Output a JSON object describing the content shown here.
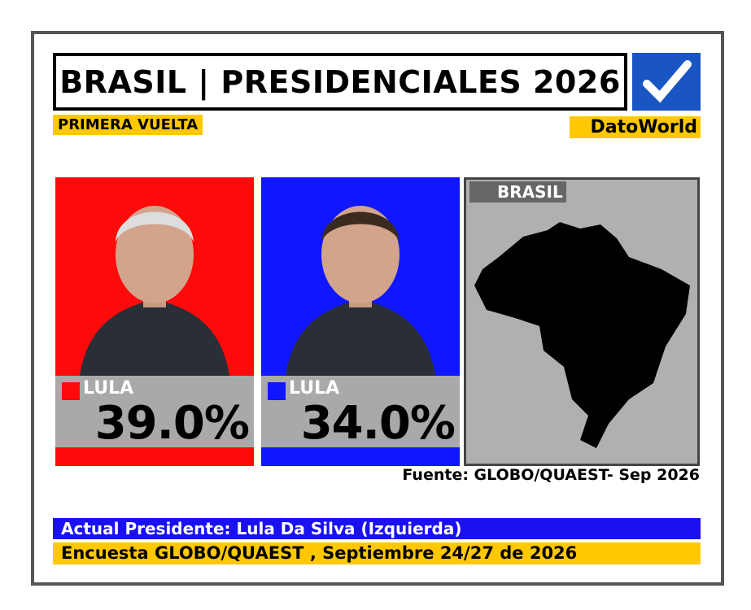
{
  "header": {
    "title": "BRASIL | PRESIDENCIALES 2026",
    "round": "PRIMERA VUELTA",
    "brand": "DatoWorld"
  },
  "candidates": [
    {
      "name": "LULA",
      "percent": "39.0%",
      "color": "#ff0a0a"
    },
    {
      "name": "LULA",
      "percent": "34.0%",
      "color": "#1016ff"
    }
  ],
  "map": {
    "label": "BRASIL"
  },
  "source": "Fuente: GLOBO/QUAEST- Sep 2026",
  "footer": {
    "president": "Actual Presidente: Lula Da Silva (Izquierda)",
    "poll": "Encuesta GLOBO/QUAEST , Septiembre 24/27 de 2026"
  }
}
